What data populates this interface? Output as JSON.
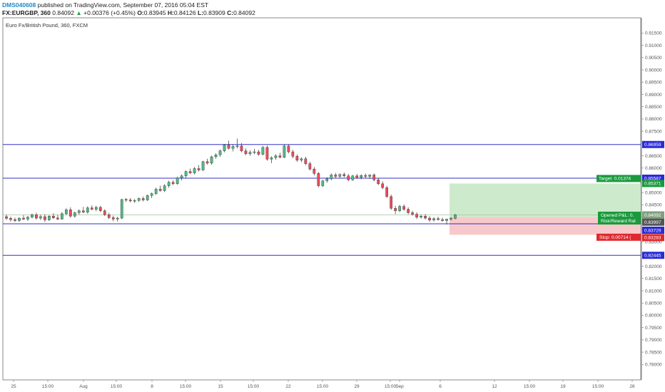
{
  "header": {
    "author": "DMS040608",
    "published": "published on TradingView.com, September 07, 2016 05:04 EST",
    "symbol": "FX:EURGBP, 360",
    "last": "0.84092",
    "change": "+0.00376 (+0.45%)",
    "open_label": "O:",
    "open": "0.83945",
    "high_label": "H:",
    "high": "0.84126",
    "low_label": "L:",
    "low": "0.83909",
    "close_label": "C:",
    "close": "0.84092"
  },
  "chart_data": {
    "type": "candlestick",
    "title": "Euro Fx/British Pound, 360, FXCM",
    "ylim": [
      0.7737,
      0.9212
    ],
    "y_ticks": [
      "0.91500",
      "0.91000",
      "0.90500",
      "0.90000",
      "0.89500",
      "0.89000",
      "0.88500",
      "0.88000",
      "0.87500",
      "0.87000",
      "0.86500",
      "0.86000",
      "0.85500",
      "0.85000",
      "0.84500",
      "0.84000",
      "0.83500",
      "0.83000",
      "0.82500",
      "0.82000",
      "0.81500",
      "0.81000",
      "0.80500",
      "0.80000",
      "0.79500",
      "0.79000",
      "0.78500",
      "0.78000"
    ],
    "x_ticks": [
      "25",
      "15:00",
      "Aug",
      "15:00",
      "8",
      "15:00",
      "15",
      "15:00",
      "22",
      "15:00",
      "29",
      "15:00",
      "Sep",
      "6",
      "12",
      "15:00",
      "19",
      "15:00",
      "26"
    ],
    "horizontal_levels": [
      0.86959,
      0.85587,
      0.83729,
      0.82445
    ],
    "price_labels": [
      {
        "text": "0.86959",
        "color": "#2b2bd6"
      },
      {
        "text": "0.85587",
        "color": "#2b2bd6"
      },
      {
        "text": "0.85371",
        "color": "#1a9a3c"
      },
      {
        "text": "0.84092",
        "color": "#7fa07f"
      },
      {
        "text": "4:56:22",
        "color": "#7fa07f"
      },
      {
        "text": "0.83997",
        "color": "#555555"
      },
      {
        "text": "0.83729",
        "color": "#2b2bd6"
      },
      {
        "text": "0.83283",
        "color": "#e0282e"
      },
      {
        "text": "0.82445",
        "color": "#2b2bd6"
      }
    ],
    "position": {
      "entry": 0.83997,
      "target": 0.85371,
      "stop": 0.83283,
      "target_label": "Target: 0.01374",
      "stop_label": "Stop: 0.00714 (",
      "pnl_label": "Opened P&L: 0.",
      "rr_label": "Risk/Reward Rat"
    },
    "ohlc": [
      [
        0.8402,
        0.841,
        0.8388,
        0.8395
      ],
      [
        0.8395,
        0.8402,
        0.8382,
        0.839
      ],
      [
        0.839,
        0.8398,
        0.838,
        0.8386
      ],
      [
        0.8386,
        0.8399,
        0.8381,
        0.8396
      ],
      [
        0.8396,
        0.8408,
        0.8388,
        0.8392
      ],
      [
        0.8392,
        0.8405,
        0.8384,
        0.84
      ],
      [
        0.84,
        0.8415,
        0.8395,
        0.841
      ],
      [
        0.841,
        0.8418,
        0.839,
        0.8396
      ],
      [
        0.8396,
        0.841,
        0.8388,
        0.8402
      ],
      [
        0.8402,
        0.8412,
        0.838,
        0.8389
      ],
      [
        0.8389,
        0.8408,
        0.8385,
        0.8404
      ],
      [
        0.8404,
        0.8416,
        0.8392,
        0.8397
      ],
      [
        0.8397,
        0.841,
        0.8388,
        0.8392
      ],
      [
        0.8392,
        0.842,
        0.839,
        0.8414
      ],
      [
        0.8414,
        0.8436,
        0.8408,
        0.843
      ],
      [
        0.843,
        0.844,
        0.8398,
        0.8404
      ],
      [
        0.8404,
        0.8422,
        0.8398,
        0.8418
      ],
      [
        0.8418,
        0.8432,
        0.841,
        0.8426
      ],
      [
        0.8426,
        0.8442,
        0.8416,
        0.842
      ],
      [
        0.842,
        0.8444,
        0.8414,
        0.8438
      ],
      [
        0.8438,
        0.8448,
        0.8428,
        0.8432
      ],
      [
        0.8432,
        0.8446,
        0.8424,
        0.844
      ],
      [
        0.844,
        0.8446,
        0.842,
        0.8426
      ],
      [
        0.8426,
        0.8432,
        0.8405,
        0.841
      ],
      [
        0.841,
        0.8418,
        0.8392,
        0.8398
      ],
      [
        0.8398,
        0.8406,
        0.8383,
        0.8392
      ],
      [
        0.8392,
        0.8402,
        0.8382,
        0.8396
      ],
      [
        0.8396,
        0.8474,
        0.8392,
        0.8472
      ],
      [
        0.8472,
        0.8478,
        0.8462,
        0.847
      ],
      [
        0.847,
        0.8478,
        0.846,
        0.8466
      ],
      [
        0.8466,
        0.8474,
        0.8458,
        0.8468
      ],
      [
        0.8468,
        0.848,
        0.8462,
        0.8476
      ],
      [
        0.8476,
        0.8484,
        0.8464,
        0.847
      ],
      [
        0.847,
        0.8492,
        0.8466,
        0.8488
      ],
      [
        0.8488,
        0.85,
        0.8478,
        0.8496
      ],
      [
        0.8496,
        0.852,
        0.849,
        0.8514
      ],
      [
        0.8514,
        0.8528,
        0.8504,
        0.8508
      ],
      [
        0.8508,
        0.8534,
        0.8502,
        0.8528
      ],
      [
        0.8528,
        0.8548,
        0.852,
        0.8542
      ],
      [
        0.8542,
        0.855,
        0.853,
        0.8536
      ],
      [
        0.8536,
        0.8565,
        0.8532,
        0.856
      ],
      [
        0.856,
        0.8574,
        0.855,
        0.8568
      ],
      [
        0.8568,
        0.859,
        0.856,
        0.8586
      ],
      [
        0.8586,
        0.8598,
        0.8576,
        0.858
      ],
      [
        0.858,
        0.8604,
        0.8574,
        0.8598
      ],
      [
        0.8598,
        0.8612,
        0.8586,
        0.8592
      ],
      [
        0.8592,
        0.863,
        0.8588,
        0.8626
      ],
      [
        0.8626,
        0.8638,
        0.8614,
        0.862
      ],
      [
        0.862,
        0.865,
        0.8614,
        0.8646
      ],
      [
        0.8646,
        0.866,
        0.8638,
        0.8654
      ],
      [
        0.8654,
        0.8676,
        0.8646,
        0.867
      ],
      [
        0.867,
        0.8698,
        0.8664,
        0.8694
      ],
      [
        0.8694,
        0.8712,
        0.8676,
        0.868
      ],
      [
        0.868,
        0.8696,
        0.8668,
        0.8688
      ],
      [
        0.8688,
        0.872,
        0.868,
        0.869
      ],
      [
        0.869,
        0.8702,
        0.8664,
        0.867
      ],
      [
        0.867,
        0.868,
        0.8652,
        0.8658
      ],
      [
        0.8658,
        0.8672,
        0.865,
        0.8664
      ],
      [
        0.8664,
        0.8678,
        0.8656,
        0.8666
      ],
      [
        0.8666,
        0.8674,
        0.865,
        0.8656
      ],
      [
        0.8656,
        0.869,
        0.8652,
        0.8684
      ],
      [
        0.8684,
        0.8692,
        0.863,
        0.8636
      ],
      [
        0.8636,
        0.8648,
        0.862,
        0.8642
      ],
      [
        0.8642,
        0.8656,
        0.8634,
        0.865
      ],
      [
        0.865,
        0.8662,
        0.864,
        0.8644
      ],
      [
        0.8644,
        0.8696,
        0.864,
        0.869
      ],
      [
        0.869,
        0.8696,
        0.866,
        0.8666
      ],
      [
        0.8666,
        0.8674,
        0.864,
        0.8648
      ],
      [
        0.8648,
        0.8656,
        0.8626,
        0.8632
      ],
      [
        0.8632,
        0.8644,
        0.8624,
        0.8638
      ],
      [
        0.8638,
        0.8646,
        0.8612,
        0.8618
      ],
      [
        0.8618,
        0.8626,
        0.859,
        0.8596
      ],
      [
        0.8596,
        0.8604,
        0.857,
        0.8578
      ],
      [
        0.8578,
        0.8584,
        0.8522,
        0.8528
      ],
      [
        0.8528,
        0.8552,
        0.8522,
        0.8548
      ],
      [
        0.8548,
        0.8562,
        0.854,
        0.8556
      ],
      [
        0.8556,
        0.8578,
        0.855,
        0.8572
      ],
      [
        0.8572,
        0.858,
        0.856,
        0.8566
      ],
      [
        0.8566,
        0.8578,
        0.8558,
        0.8574
      ],
      [
        0.8574,
        0.8582,
        0.8562,
        0.8568
      ],
      [
        0.8568,
        0.8576,
        0.8546,
        0.8552
      ],
      [
        0.8552,
        0.8572,
        0.8548,
        0.8568
      ],
      [
        0.8568,
        0.8576,
        0.8556,
        0.8562
      ],
      [
        0.8562,
        0.8574,
        0.8554,
        0.857
      ],
      [
        0.857,
        0.8578,
        0.8558,
        0.8566
      ],
      [
        0.8566,
        0.8574,
        0.8556,
        0.8572
      ],
      [
        0.8572,
        0.8578,
        0.8546,
        0.8552
      ],
      [
        0.8552,
        0.856,
        0.853,
        0.8536
      ],
      [
        0.8536,
        0.8546,
        0.8514,
        0.852
      ],
      [
        0.852,
        0.8528,
        0.8478,
        0.8484
      ],
      [
        0.8484,
        0.8492,
        0.843,
        0.8436
      ],
      [
        0.8436,
        0.8446,
        0.8412,
        0.8426
      ],
      [
        0.8426,
        0.845,
        0.842,
        0.8444
      ],
      [
        0.8444,
        0.8452,
        0.8426,
        0.8432
      ],
      [
        0.8432,
        0.844,
        0.8412,
        0.8418
      ],
      [
        0.8418,
        0.8426,
        0.8406,
        0.8412
      ],
      [
        0.8412,
        0.842,
        0.8392,
        0.84
      ],
      [
        0.84,
        0.841,
        0.8394,
        0.8404
      ],
      [
        0.8404,
        0.8412,
        0.839,
        0.8396
      ],
      [
        0.8396,
        0.8404,
        0.838,
        0.8388
      ],
      [
        0.8388,
        0.84,
        0.8382,
        0.8394
      ],
      [
        0.8394,
        0.8402,
        0.8386,
        0.839
      ],
      [
        0.839,
        0.8398,
        0.8382,
        0.8386
      ],
      [
        0.8386,
        0.8394,
        0.837,
        0.8392
      ],
      [
        0.8392,
        0.84,
        0.8386,
        0.8396
      ],
      [
        0.8395,
        0.8413,
        0.8391,
        0.8409
      ]
    ]
  }
}
